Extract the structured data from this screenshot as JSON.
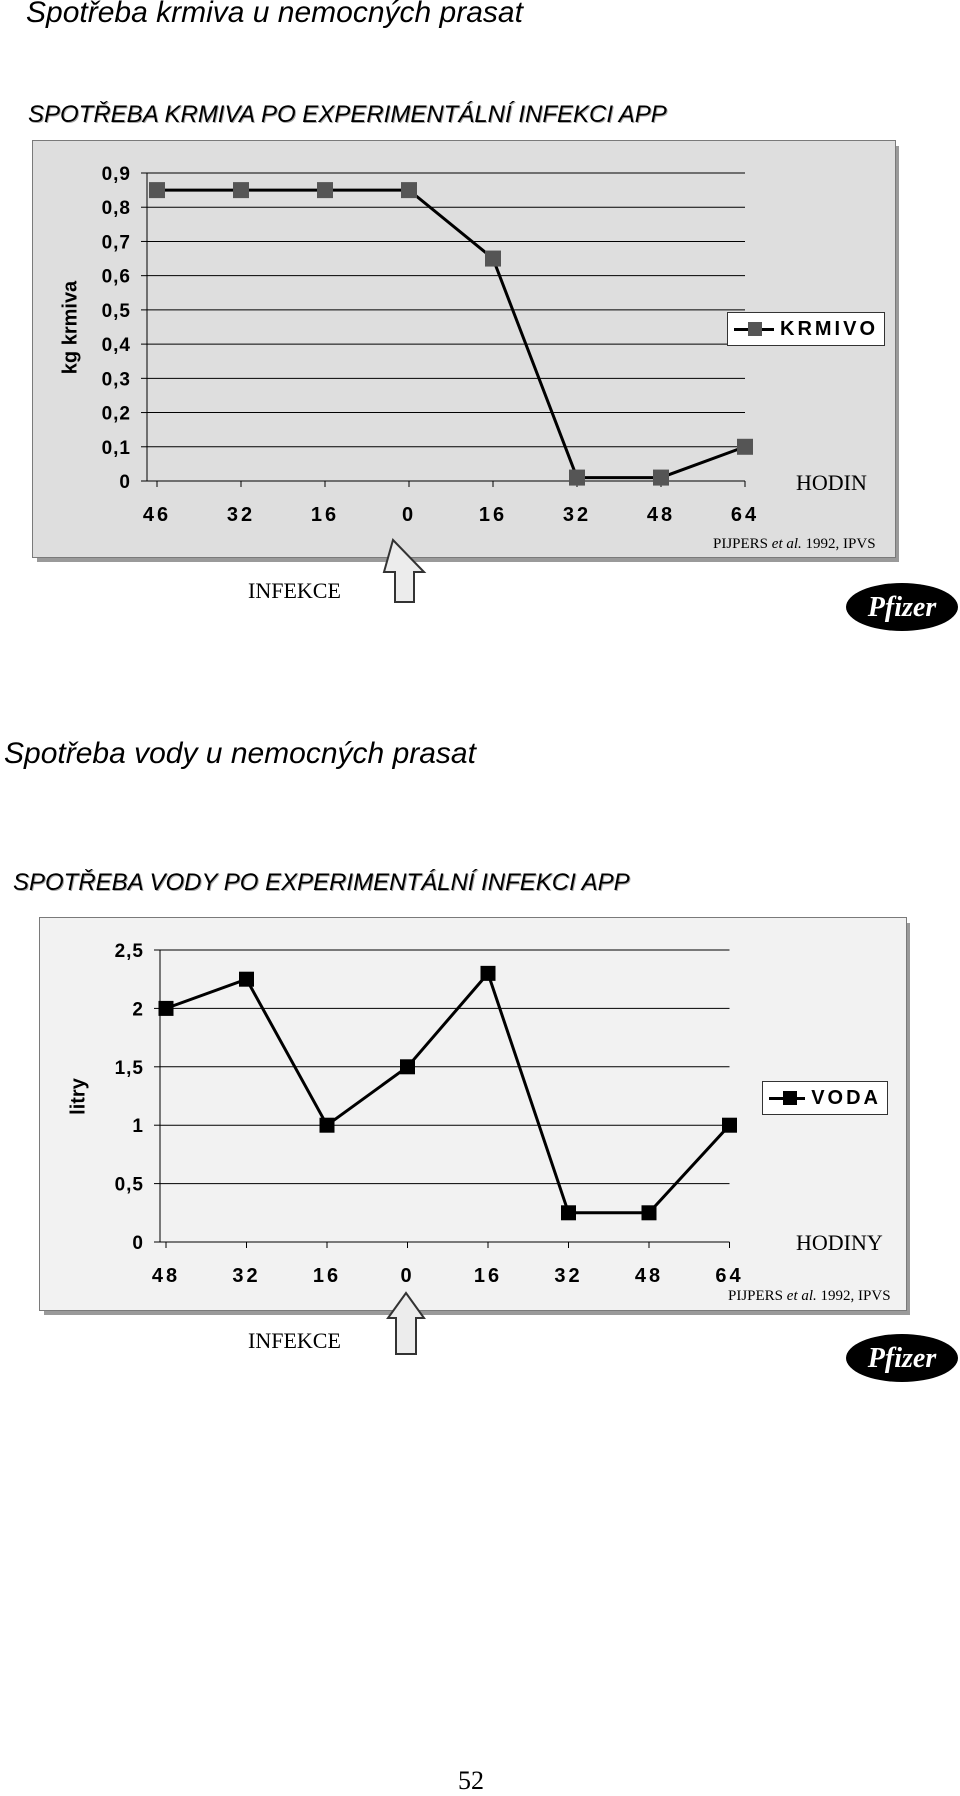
{
  "page": {
    "number": "52"
  },
  "sections": [
    {
      "heading": "Spotřeba krmiva u nemocných prasat",
      "chart_title": "SPOTŘEBA KRMIVA PO EXPERIMENTÁLNÍ INFEKCI APP",
      "hours_label": "HODIN",
      "source": {
        "author": "PIJPERS",
        "etal": "et al.",
        "rest": "1992, IPVS"
      },
      "infection_label": "INFEKCE",
      "logo_text": "Pfizer"
    },
    {
      "heading": "Spotřeba vody u nemocných prasat",
      "chart_title": "SPOTŘEBA VODY PO EXPERIMENTÁLNÍ INFEKCI APP",
      "hours_label": "HODINY",
      "source": {
        "author": "PIJPERS",
        "etal": "et al.",
        "rest": "1992, IPVS"
      },
      "infection_label": "INFEKCE",
      "logo_text": "Pfizer"
    }
  ],
  "chart_data": [
    {
      "type": "line",
      "categories": [
        "46",
        "32",
        "16",
        "0",
        "16",
        "32",
        "48",
        "64"
      ],
      "series": [
        {
          "name": "KRMIVO",
          "values": [
            0.85,
            0.85,
            0.85,
            0.85,
            0.65,
            0.01,
            0.01,
            0.1
          ],
          "color": "#555555"
        }
      ],
      "ylabel": "kg krmiva",
      "ylim": [
        0,
        0.9
      ],
      "yticks": [
        "0",
        "0,1",
        "0,2",
        "0,3",
        "0,4",
        "0,5",
        "0,6",
        "0,7",
        "0,8",
        "0,9"
      ],
      "grid": true,
      "legend": "right"
    },
    {
      "type": "line",
      "categories": [
        "48",
        "32",
        "16",
        "0",
        "16",
        "32",
        "48",
        "64"
      ],
      "series": [
        {
          "name": "VODA",
          "values": [
            2,
            2.25,
            1,
            1.5,
            2.3,
            0.25,
            0.25,
            1
          ],
          "color": "#000000"
        }
      ],
      "ylabel": "litry",
      "ylim": [
        0,
        2.5
      ],
      "yticks": [
        "0",
        "0,5",
        "1",
        "1,5",
        "2",
        "2,5"
      ],
      "grid": true,
      "legend": "right"
    }
  ]
}
